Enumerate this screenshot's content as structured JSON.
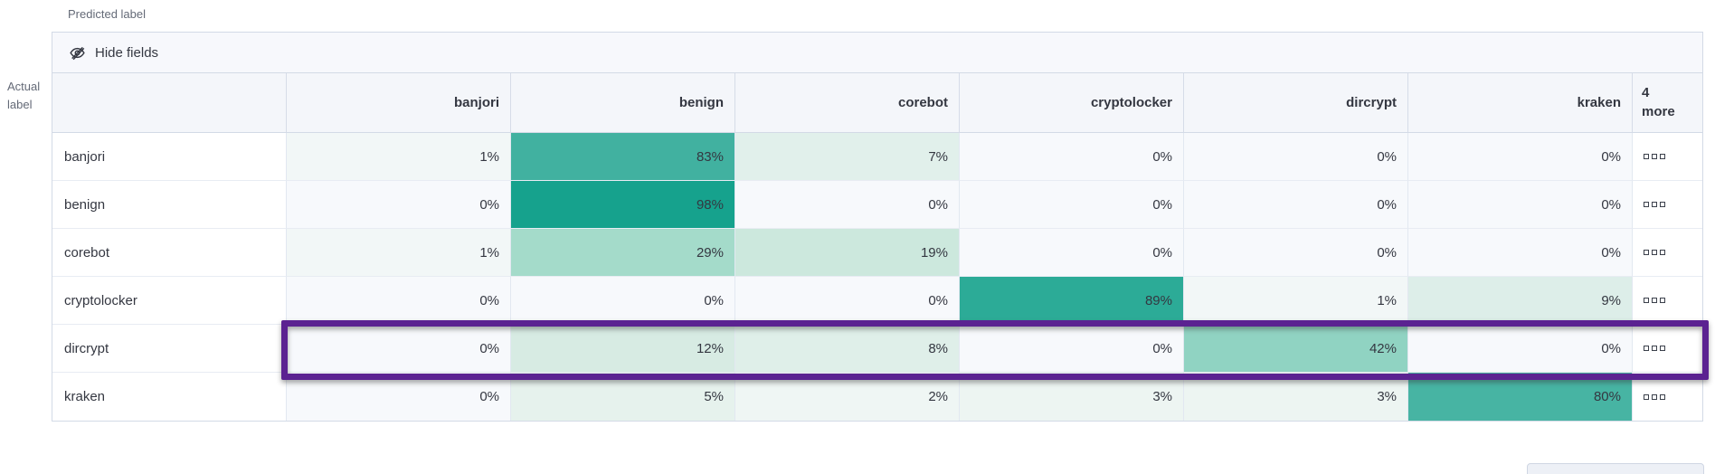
{
  "labels": {
    "predicted": "Predicted label",
    "actual": "Actual label"
  },
  "toolbar": {
    "hide_fields": "Hide fields",
    "icon": "eye-closed-icon"
  },
  "matrix": {
    "column_headers": [
      "banjori",
      "benign",
      "corebot",
      "cryptolocker",
      "dircrypt",
      "kraken"
    ],
    "more_column_header": "4 more",
    "value_suffix": "%",
    "row_actions_icon": "boxes-horizontal-icon",
    "rows": [
      {
        "label": "banjori",
        "values": [
          1,
          83,
          7,
          0,
          0,
          0
        ],
        "highlighted": false
      },
      {
        "label": "benign",
        "values": [
          0,
          98,
          0,
          0,
          0,
          0
        ],
        "highlighted": false
      },
      {
        "label": "corebot",
        "values": [
          1,
          29,
          19,
          0,
          0,
          0
        ],
        "highlighted": false
      },
      {
        "label": "cryptolocker",
        "values": [
          0,
          0,
          0,
          89,
          1,
          9
        ],
        "highlighted": false
      },
      {
        "label": "dircrypt",
        "values": [
          0,
          12,
          8,
          0,
          42,
          0
        ],
        "highlighted": true
      },
      {
        "label": "kraken",
        "values": [
          0,
          5,
          2,
          3,
          3,
          80
        ],
        "highlighted": false
      }
    ]
  },
  "colors": {
    "highlight_border": "#5b2291",
    "heat": {
      "0": "#f7f9fc",
      "1": "#f2f7f7",
      "2": "#eff6f4",
      "3": "#edf5f2",
      "5": "#e6f2ed",
      "7": "#e1f0eb",
      "8": "#dfefe9",
      "9": "#ddeee9",
      "12": "#d7ebe3",
      "19": "#cce8dd",
      "29": "#a4dbca",
      "42": "#90d3c2",
      "80": "#47b4a3",
      "83": "#41b1a0",
      "89": "#2cab97",
      "98": "#16a28d"
    }
  }
}
